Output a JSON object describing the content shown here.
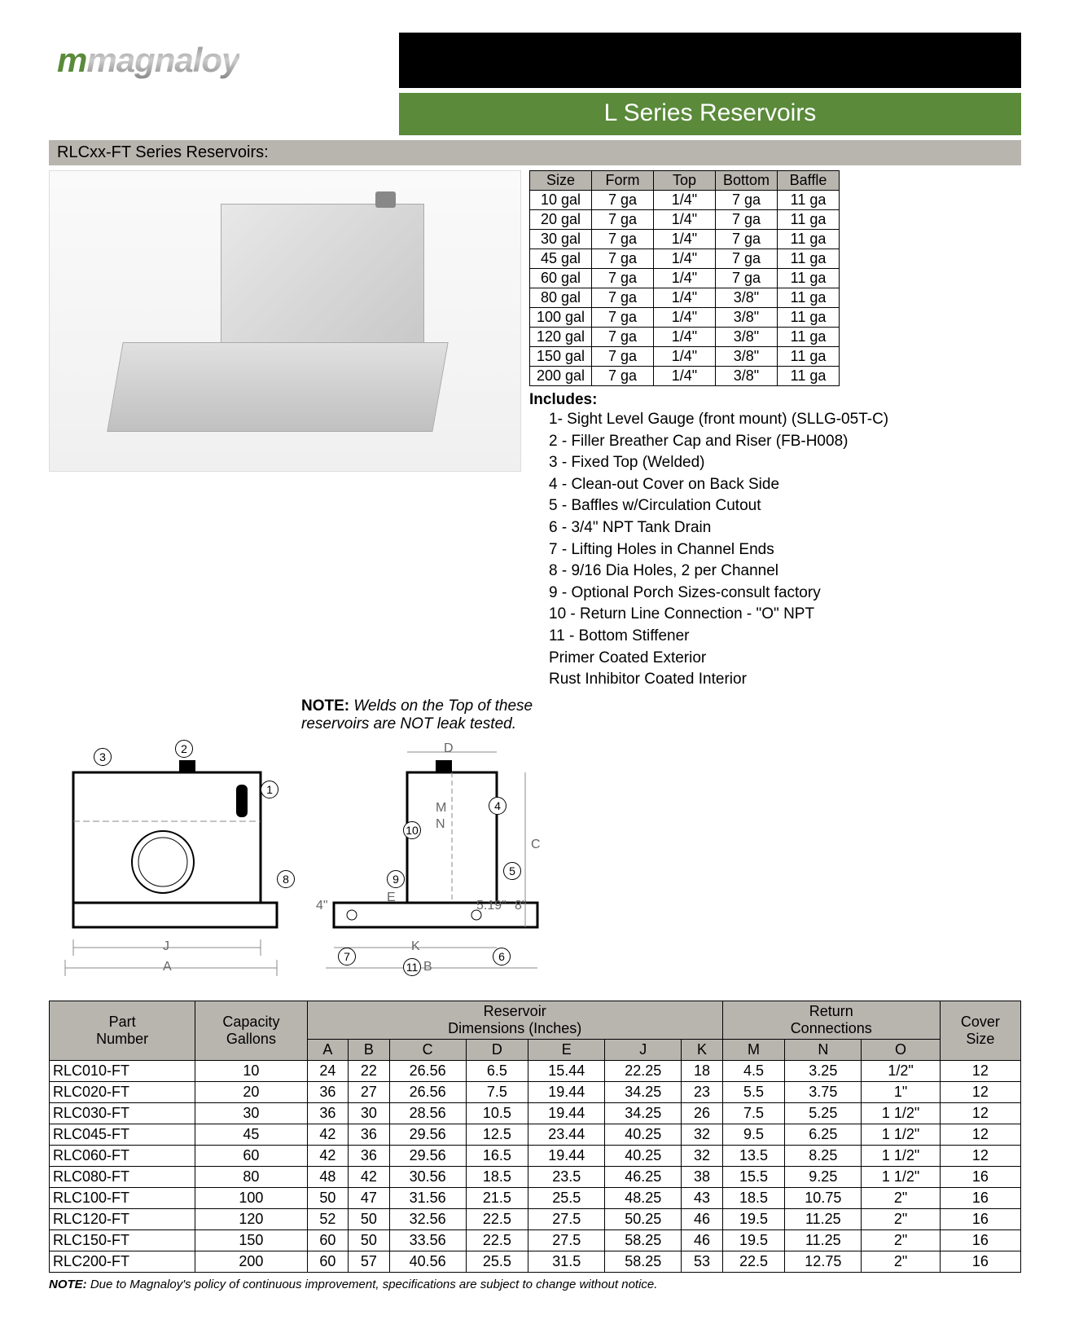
{
  "header": {
    "brand": "magnaloy",
    "title": "L Series Reservoirs",
    "subtitle": "RLCxx-FT Series Reservoirs:"
  },
  "spec_table": {
    "columns": [
      "Size",
      "Form",
      "Top",
      "Bottom",
      "Baffle"
    ],
    "rows": [
      [
        "10 gal",
        "7 ga",
        "1/4\"",
        "7 ga",
        "11 ga"
      ],
      [
        "20 gal",
        "7 ga",
        "1/4\"",
        "7 ga",
        "11 ga"
      ],
      [
        "30 gal",
        "7 ga",
        "1/4\"",
        "7 ga",
        "11 ga"
      ],
      [
        "45 gal",
        "7 ga",
        "1/4\"",
        "7 ga",
        "11 ga"
      ],
      [
        "60 gal",
        "7 ga",
        "1/4\"",
        "7 ga",
        "11 ga"
      ],
      [
        "80 gal",
        "7 ga",
        "1/4\"",
        "3/8\"",
        "11 ga"
      ],
      [
        "100 gal",
        "7 ga",
        "1/4\"",
        "3/8\"",
        "11 ga"
      ],
      [
        "120 gal",
        "7 ga",
        "1/4\"",
        "3/8\"",
        "11 ga"
      ],
      [
        "150 gal",
        "7 ga",
        "1/4\"",
        "3/8\"",
        "11 ga"
      ],
      [
        "200 gal",
        "7 ga",
        "1/4\"",
        "3/8\"",
        "11 ga"
      ]
    ]
  },
  "note1": {
    "label": "NOTE:",
    "text": " Welds on the Top of these reservoirs are NOT leak tested."
  },
  "includes": {
    "title": "Includes:",
    "items": [
      "1- Sight Level Gauge (front mount) (SLLG-05T-C)",
      "2 - Filler Breather Cap and Riser (FB-H008)",
      "3 - Fixed Top (Welded)",
      "4 - Clean-out Cover on Back Side",
      "5 - Baffles w/Circulation Cutout",
      "6 - 3/4\" NPT Tank Drain",
      "7 - Lifting Holes in Channel Ends",
      "8 - 9/16 Dia Holes, 2 per Channel",
      "9 - Optional Porch Sizes-consult factory",
      "10 - Return Line Connection - \"O\" NPT",
      "11 - Bottom Stiffener",
      "Primer Coated Exterior",
      "Rust Inhibitor Coated Interior"
    ]
  },
  "diagram": {
    "front_callouts": [
      "1",
      "2",
      "3",
      "8"
    ],
    "front_dims": {
      "J": "J",
      "A": "A"
    },
    "side_callouts": [
      "4",
      "5",
      "6",
      "7",
      "9",
      "10",
      "11"
    ],
    "side_dims": {
      "D": "D",
      "M": "M",
      "N": "N",
      "C": "C",
      "E": "E",
      "K": "K",
      "B": "B",
      "four": "4\"",
      "fivenineteen": "5.19\"",
      "eight": "8\""
    }
  },
  "dims_table": {
    "header1": [
      "Part Number",
      "Capacity Gallons",
      "Reservoir Dimensions (Inches)",
      "Return Connections",
      "Cover Size"
    ],
    "span": [
      1,
      1,
      7,
      3,
      1
    ],
    "subheader": [
      "A",
      "B",
      "C",
      "D",
      "E",
      "J",
      "K",
      "M",
      "N",
      "O"
    ],
    "rows": [
      [
        "RLC010-FT",
        "10",
        "24",
        "22",
        "26.56",
        "6.5",
        "15.44",
        "22.25",
        "18",
        "4.5",
        "3.25",
        "1/2\"",
        "12"
      ],
      [
        "RLC020-FT",
        "20",
        "36",
        "27",
        "26.56",
        "7.5",
        "19.44",
        "34.25",
        "23",
        "5.5",
        "3.75",
        "1\"",
        "12"
      ],
      [
        "RLC030-FT",
        "30",
        "36",
        "30",
        "28.56",
        "10.5",
        "19.44",
        "34.25",
        "26",
        "7.5",
        "5.25",
        "1 1/2\"",
        "12"
      ],
      [
        "RLC045-FT",
        "45",
        "42",
        "36",
        "29.56",
        "12.5",
        "23.44",
        "40.25",
        "32",
        "9.5",
        "6.25",
        "1 1/2\"",
        "12"
      ],
      [
        "RLC060-FT",
        "60",
        "42",
        "36",
        "29.56",
        "16.5",
        "19.44",
        "40.25",
        "32",
        "13.5",
        "8.25",
        "1 1/2\"",
        "12"
      ],
      [
        "RLC080-FT",
        "80",
        "48",
        "42",
        "30.56",
        "18.5",
        "23.5",
        "46.25",
        "38",
        "15.5",
        "9.25",
        "1 1/2\"",
        "16"
      ],
      [
        "RLC100-FT",
        "100",
        "50",
        "47",
        "31.56",
        "21.5",
        "25.5",
        "48.25",
        "43",
        "18.5",
        "10.75",
        "2\"",
        "16"
      ],
      [
        "RLC120-FT",
        "120",
        "52",
        "50",
        "32.56",
        "22.5",
        "27.5",
        "50.25",
        "46",
        "19.5",
        "11.25",
        "2\"",
        "16"
      ],
      [
        "RLC150-FT",
        "150",
        "60",
        "50",
        "33.56",
        "22.5",
        "27.5",
        "58.25",
        "46",
        "19.5",
        "11.25",
        "2\"",
        "16"
      ],
      [
        "RLC200-FT",
        "200",
        "60",
        "57",
        "40.56",
        "25.5",
        "31.5",
        "58.25",
        "53",
        "22.5",
        "12.75",
        "2\"",
        "16"
      ]
    ]
  },
  "footnote": {
    "label": "NOTE:",
    "text": " Due to Magnaloy's policy of continuous improvement, specifications are subject to change without notice."
  }
}
